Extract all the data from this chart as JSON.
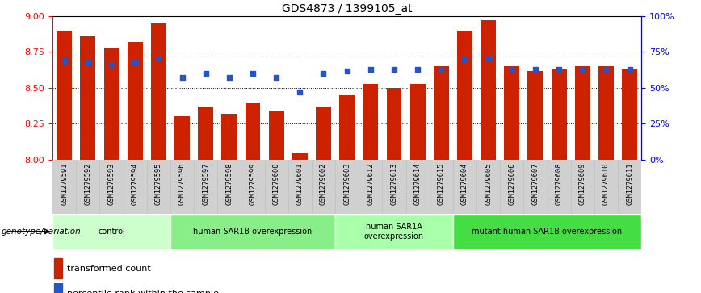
{
  "title": "GDS4873 / 1399105_at",
  "samples": [
    "GSM1279591",
    "GSM1279592",
    "GSM1279593",
    "GSM1279594",
    "GSM1279595",
    "GSM1279596",
    "GSM1279597",
    "GSM1279598",
    "GSM1279599",
    "GSM1279600",
    "GSM1279601",
    "GSM1279602",
    "GSM1279603",
    "GSM1279612",
    "GSM1279613",
    "GSM1279614",
    "GSM1279615",
    "GSM1279604",
    "GSM1279605",
    "GSM1279606",
    "GSM1279607",
    "GSM1279608",
    "GSM1279609",
    "GSM1279610",
    "GSM1279611"
  ],
  "bar_values": [
    8.9,
    8.86,
    8.78,
    8.82,
    8.95,
    8.3,
    8.37,
    8.32,
    8.4,
    8.34,
    8.05,
    8.37,
    8.45,
    8.53,
    8.5,
    8.53,
    8.65,
    8.9,
    8.97,
    8.65,
    8.62,
    8.63,
    8.65,
    8.65,
    8.63
  ],
  "dot_values": [
    8.69,
    8.68,
    8.66,
    8.68,
    8.71,
    8.57,
    8.6,
    8.57,
    8.6,
    8.57,
    8.47,
    8.6,
    8.62,
    8.63,
    8.63,
    8.63,
    8.63,
    8.7,
    8.71,
    8.63,
    8.63,
    8.63,
    8.63,
    8.63,
    8.63
  ],
  "ylim": [
    8.0,
    9.0
  ],
  "yticks": [
    8.0,
    8.25,
    8.5,
    8.75,
    9.0
  ],
  "bar_color": "#cc2200",
  "dot_color": "#2255cc",
  "groups": [
    {
      "label": "control",
      "start": 0,
      "end": 4,
      "color": "#ccffcc"
    },
    {
      "label": "human SAR1B overexpression",
      "start": 5,
      "end": 11,
      "color": "#88ee88"
    },
    {
      "label": "human SAR1A\noverexpression",
      "start": 12,
      "end": 16,
      "color": "#aaffaa"
    },
    {
      "label": "mutant human SAR1B overexpression",
      "start": 17,
      "end": 24,
      "color": "#44dd44"
    }
  ],
  "right_yticks": [
    0,
    25,
    50,
    75,
    100
  ],
  "right_ylabels": [
    "0%",
    "25%",
    "50%",
    "75%",
    "100%"
  ],
  "genotype_label": "genotype/variation"
}
